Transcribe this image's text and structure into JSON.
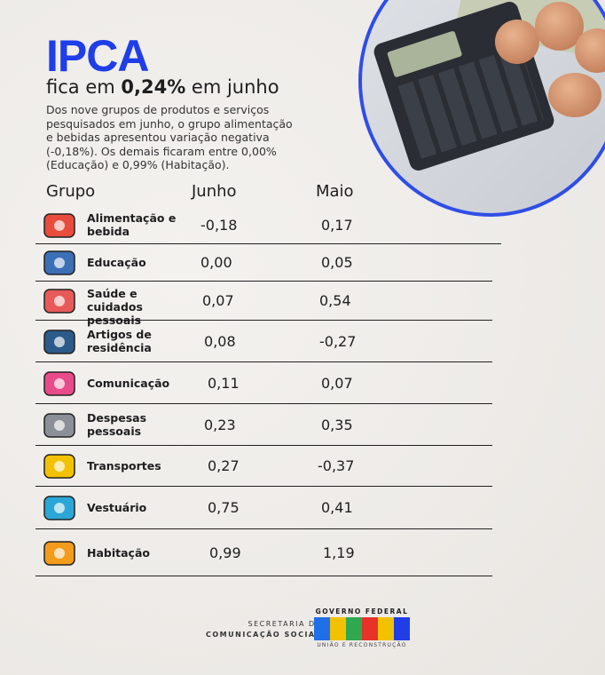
{
  "header": {
    "title": "IPCA",
    "subtitle_pre": "fica em ",
    "subtitle_bold": "0,24%",
    "subtitle_post": " em junho",
    "description": "Dos nove grupos de produtos e serviços pesquisados em junho, o grupo alimentação e bebidas apresentou variação negativa (-0,18%). Os demais ficaram entre 0,00% (Educação) e 0,99% (Habitação)."
  },
  "table": {
    "columns": [
      "Grupo",
      "Junho",
      "Maio"
    ],
    "rows": [
      {
        "group": "Alimentação e bebida",
        "junho": "-0,18",
        "maio": "0,17",
        "icon": "food-icon"
      },
      {
        "group": "Educação",
        "junho": "0,00",
        "maio": "0,05",
        "icon": "books-graduation-icon"
      },
      {
        "group": "Saúde e cuidados pessoais",
        "junho": "0,07",
        "maio": "0,54",
        "icon": "medical-kit-icon"
      },
      {
        "group": "Artigos de residência",
        "junho": "0,08",
        "maio": "-0,27",
        "icon": "sofa-icon"
      },
      {
        "group": "Comunicação",
        "junho": "0,11",
        "maio": "0,07",
        "icon": "chat-bubbles-icon"
      },
      {
        "group": "Despesas pessoais",
        "junho": "0,23",
        "maio": "0,35",
        "icon": "receipt-coin-icon"
      },
      {
        "group": "Transportes",
        "junho": "0,27",
        "maio": "-0,37",
        "icon": "car-icon"
      },
      {
        "group": "Vestuário",
        "junho": "0,75",
        "maio": "0,41",
        "icon": "shirt-icon"
      },
      {
        "group": "Habitação",
        "junho": "0,99",
        "maio": "1,19",
        "icon": "house-icon"
      }
    ]
  },
  "footer": {
    "secretaria_line1": "SECRETARIA DE",
    "secretaria_line2": "COMUNICAÇÃO SOCIAL",
    "gov_top": "GOVERNO FEDERAL",
    "gov_logo": "BRASIL",
    "gov_bottom": "UNIÃO E RECONSTRUÇÃO"
  },
  "colors": {
    "accent": "#1f3ee8"
  }
}
